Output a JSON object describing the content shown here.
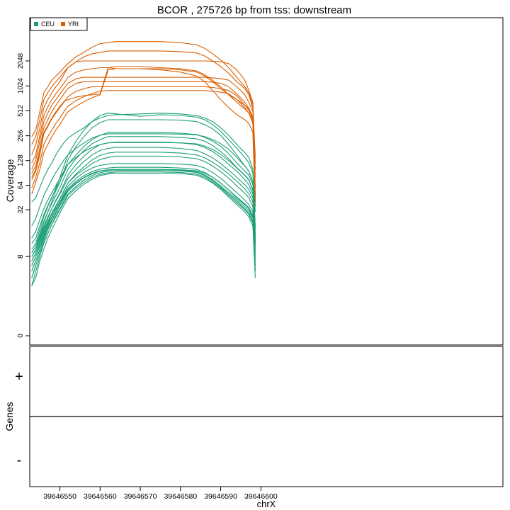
{
  "chart_data": {
    "type": "line",
    "title": "BCOR , 275726 bp from tss: downstream",
    "xlabel": "chrX",
    "ylabel": "Coverage",
    "genes_label": "Genes",
    "strand_plus": "+",
    "strand_minus": "-",
    "x_range": [
      39646542.5,
      39646660.2
    ],
    "x_ticks": [
      39646550,
      39646560,
      39646570,
      39646580,
      39646590,
      39646600
    ],
    "x_tick_labels": [
      "39646550",
      "39646560",
      "39646570",
      "39646580",
      "39646590",
      "39646600"
    ],
    "y_scale": "log2(1+y)",
    "y_ticks": [
      0,
      8,
      32,
      64,
      128,
      256,
      512,
      1024,
      2048
    ],
    "y_tick_labels": [
      "0",
      "8",
      "32",
      "64",
      "128",
      "256",
      "512",
      "1024",
      "2048"
    ],
    "legend": {
      "placement": "top-left",
      "entries": [
        "CEU",
        "YRI"
      ]
    },
    "colors": {
      "CEU": "#1b9e77",
      "YRI": "#d95f02"
    },
    "x": [
      39646543,
      39646544,
      39646545,
      39646546,
      39646547,
      39646548,
      39646549,
      39646550,
      39646551,
      39646552,
      39646554,
      39646556,
      39646558,
      39646560,
      39646562,
      39646564,
      39646570,
      39646575,
      39646580,
      39646584,
      39646586,
      39646588,
      39646590,
      39646592,
      39646594,
      39646596,
      39646597,
      39646598,
      39646598.6
    ],
    "series": [
      {
        "group": "YRI",
        "values": [
          250,
          300,
          500,
          850,
          1000,
          1200,
          1350,
          1500,
          1700,
          1900,
          2300,
          2600,
          3000,
          3300,
          3400,
          3500,
          3500,
          3500,
          3400,
          3200,
          2900,
          2500,
          2100,
          1700,
          1300,
          1000,
          850,
          600,
          140
        ]
      },
      {
        "group": "YRI",
        "values": [
          200,
          250,
          400,
          700,
          850,
          1000,
          1150,
          1300,
          1500,
          1700,
          2000,
          2300,
          2500,
          2600,
          2700,
          2700,
          2700,
          2700,
          2650,
          2550,
          2350,
          2050,
          1750,
          1450,
          1150,
          950,
          800,
          550,
          120
        ]
      },
      {
        "group": "YRI",
        "values": [
          150,
          200,
          320,
          560,
          700,
          850,
          1000,
          1150,
          1400,
          1700,
          2000,
          2050,
          2050,
          2050,
          2050,
          2050,
          2050,
          2050,
          2050,
          2050,
          2050,
          2030,
          2000,
          1900,
          1600,
          1200,
          900,
          650,
          100
        ]
      },
      {
        "group": "YRI",
        "values": [
          120,
          150,
          260,
          450,
          570,
          700,
          820,
          950,
          1100,
          1300,
          1500,
          1600,
          1650,
          1700,
          1700,
          1650,
          1650,
          1650,
          1600,
          1500,
          1350,
          1150,
          950,
          800,
          700,
          600,
          540,
          400,
          80
        ]
      },
      {
        "group": "YRI",
        "values": [
          100,
          130,
          220,
          380,
          480,
          600,
          700,
          820,
          950,
          1100,
          1250,
          1300,
          1300,
          1300,
          1300,
          1300,
          1300,
          1300,
          1300,
          1300,
          1300,
          1280,
          1250,
          1200,
          1000,
          800,
          650,
          500,
          60
        ]
      },
      {
        "group": "YRI",
        "values": [
          90,
          110,
          180,
          320,
          400,
          500,
          600,
          700,
          820,
          950,
          1100,
          1150,
          1150,
          1150,
          1150,
          1150,
          1150,
          1150,
          1150,
          1150,
          1150,
          1130,
          1100,
          1000,
          820,
          650,
          550,
          430,
          50
        ]
      },
      {
        "group": "YRI",
        "values": [
          75,
          95,
          150,
          270,
          330,
          410,
          480,
          560,
          650,
          760,
          880,
          950,
          1000,
          1000,
          1000,
          1000,
          1000,
          1000,
          1000,
          1000,
          1000,
          980,
          950,
          900,
          780,
          600,
          520,
          400,
          45
        ]
      },
      {
        "group": "YRI",
        "values": [
          60,
          80,
          120,
          200,
          250,
          300,
          360,
          420,
          500,
          580,
          680,
          760,
          830,
          880,
          900,
          900,
          900,
          900,
          900,
          900,
          900,
          880,
          860,
          820,
          700,
          560,
          480,
          360,
          40
        ]
      },
      {
        "group": "YRI",
        "values": [
          50,
          70,
          100,
          160,
          200,
          250,
          300,
          350,
          420,
          500,
          580,
          660,
          740,
          800,
          1600,
          1650,
          1650,
          1600,
          1500,
          1350,
          1150,
          900,
          700,
          560,
          460,
          400,
          360,
          280,
          35
        ]
      },
      {
        "group": "YRI",
        "values": [
          80,
          100,
          160,
          280,
          340,
          420,
          500,
          580,
          660,
          700,
          750,
          780,
          800,
          820,
          1700,
          1750,
          1750,
          1700,
          1650,
          1550,
          1400,
          1200,
          1000,
          800,
          650,
          540,
          480,
          380,
          42
        ]
      },
      {
        "group": "CEU",
        "values": [
          40,
          45,
          60,
          80,
          100,
          120,
          150,
          180,
          210,
          240,
          280,
          320,
          380,
          420,
          450,
          460,
          470,
          480,
          470,
          450,
          420,
          380,
          320,
          260,
          200,
          160,
          140,
          100,
          30
        ]
      },
      {
        "group": "CEU",
        "values": [
          10,
          12,
          18,
          26,
          35,
          45,
          60,
          80,
          110,
          150,
          220,
          300,
          380,
          450,
          480,
          470,
          440,
          460,
          450,
          430,
          400,
          350,
          290,
          230,
          180,
          140,
          120,
          90,
          20
        ]
      },
      {
        "group": "CEU",
        "values": [
          8,
          10,
          15,
          22,
          30,
          40,
          55,
          70,
          95,
          130,
          190,
          250,
          320,
          370,
          400,
          400,
          400,
          400,
          395,
          380,
          350,
          310,
          260,
          200,
          150,
          110,
          95,
          70,
          18
        ]
      },
      {
        "group": "CEU",
        "values": [
          12,
          14,
          20,
          28,
          36,
          46,
          58,
          72,
          90,
          115,
          150,
          190,
          230,
          260,
          280,
          280,
          280,
          280,
          275,
          265,
          245,
          220,
          190,
          155,
          120,
          95,
          85,
          65,
          16
        ]
      },
      {
        "group": "CEU",
        "values": [
          9,
          11,
          16,
          23,
          30,
          38,
          48,
          60,
          78,
          100,
          135,
          170,
          205,
          230,
          250,
          250,
          250,
          250,
          245,
          235,
          220,
          195,
          165,
          135,
          105,
          85,
          75,
          55,
          14
        ]
      },
      {
        "group": "CEU",
        "values": [
          7,
          9,
          13,
          19,
          25,
          33,
          42,
          52,
          66,
          85,
          115,
          145,
          175,
          200,
          210,
          215,
          215,
          215,
          210,
          200,
          185,
          165,
          140,
          115,
          95,
          75,
          65,
          50,
          13
        ]
      },
      {
        "group": "CEU",
        "values": [
          8,
          10,
          14,
          20,
          26,
          33,
          41,
          50,
          62,
          78,
          100,
          125,
          150,
          170,
          180,
          185,
          185,
          185,
          180,
          170,
          155,
          138,
          118,
          98,
          80,
          65,
          57,
          45,
          12
        ]
      },
      {
        "group": "CEU",
        "values": [
          6,
          8,
          12,
          17,
          22,
          28,
          35,
          43,
          54,
          68,
          88,
          108,
          130,
          148,
          158,
          162,
          162,
          162,
          158,
          150,
          138,
          122,
          105,
          88,
          72,
          58,
          50,
          40,
          11
        ]
      },
      {
        "group": "CEU",
        "values": [
          7,
          9,
          13,
          18,
          23,
          29,
          36,
          44,
          55,
          68,
          85,
          100,
          118,
          132,
          140,
          145,
          145,
          145,
          142,
          135,
          125,
          110,
          94,
          78,
          63,
          51,
          45,
          35,
          10
        ]
      },
      {
        "group": "CEU",
        "values": [
          5,
          7,
          10,
          15,
          20,
          26,
          33,
          40,
          50,
          62,
          78,
          92,
          104,
          112,
          116,
          118,
          118,
          118,
          116,
          112,
          104,
          92,
          78,
          64,
          52,
          42,
          37,
          30,
          9
        ]
      },
      {
        "group": "CEU",
        "values": [
          6,
          8,
          11,
          16,
          21,
          26,
          32,
          39,
          48,
          58,
          72,
          84,
          94,
          101,
          104,
          106,
          106,
          106,
          104,
          100,
          92,
          80,
          68,
          56,
          46,
          38,
          34,
          27,
          8
        ]
      },
      {
        "group": "CEU",
        "values": [
          4,
          6,
          9,
          13,
          18,
          23,
          29,
          36,
          44,
          54,
          67,
          79,
          88,
          95,
          98,
          100,
          100,
          100,
          98,
          94,
          86,
          75,
          63,
          52,
          43,
          35,
          31,
          25,
          7
        ]
      },
      {
        "group": "CEU",
        "values": [
          5,
          7,
          10,
          14,
          19,
          24,
          30,
          37,
          46,
          56,
          69,
          80,
          90,
          96,
          99,
          100,
          100,
          100,
          99,
          96,
          90,
          80,
          68,
          56,
          45,
          37,
          33,
          26,
          6
        ]
      },
      {
        "group": "CEU",
        "values": [
          3,
          5,
          8,
          12,
          16,
          21,
          27,
          33,
          41,
          50,
          62,
          74,
          84,
          91,
          95,
          97,
          97,
          97,
          96,
          92,
          84,
          73,
          61,
          50,
          41,
          33,
          29,
          23,
          5
        ]
      },
      {
        "group": "CEU",
        "values": [
          4,
          6,
          9,
          12,
          16,
          21,
          26,
          32,
          39,
          48,
          59,
          70,
          80,
          87,
          91,
          93,
          93,
          93,
          92,
          88,
          81,
          70,
          59,
          48,
          39,
          32,
          28,
          22,
          5
        ]
      },
      {
        "group": "CEU",
        "values": [
          3,
          4,
          7,
          10,
          14,
          18,
          23,
          29,
          36,
          44,
          55,
          66,
          76,
          84,
          88,
          90,
          90,
          90,
          89,
          85,
          78,
          68,
          57,
          46,
          37,
          30,
          26,
          20,
          4
        ]
      },
      {
        "group": "CEU",
        "values": [
          20,
          25,
          35,
          48,
          60,
          75,
          92,
          110,
          130,
          150,
          180,
          210,
          240,
          260,
          270,
          270,
          270,
          270,
          268,
          262,
          250,
          230,
          205,
          175,
          140,
          110,
          95,
          70,
          15
        ]
      },
      {
        "group": "CEU",
        "values": [
          14,
          17,
          24,
          33,
          42,
          52,
          64,
          78,
          95,
          115,
          140,
          165,
          185,
          200,
          210,
          212,
          212,
          212,
          210,
          204,
          192,
          175,
          152,
          128,
          104,
          84,
          74,
          56,
          12
        ]
      }
    ]
  }
}
